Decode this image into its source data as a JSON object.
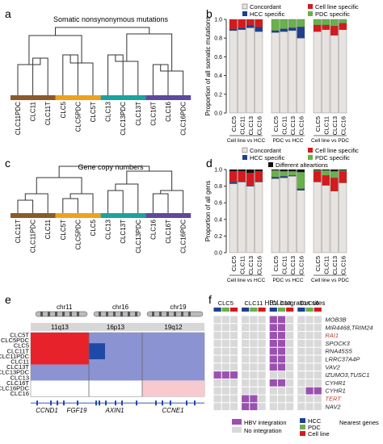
{
  "panels": {
    "a": {
      "letter": "a",
      "title": "Somatic nonsynonymous mutations",
      "leaves": [
        "CLC11PDC",
        "CLC11",
        "CLC11T",
        "CLC5",
        "CLC5PDC",
        "CLC5T",
        "CLC13",
        "CLC13PDC",
        "CLC13T",
        "CLC16T",
        "CLC16",
        "CLC16PDC"
      ]
    },
    "b": {
      "letter": "b",
      "ylabel": "Proportion of all somatic mutations",
      "groups": [
        "Cell line vs HCC",
        "PDC vs HCC",
        "Cell line vs PDC"
      ]
    },
    "c": {
      "letter": "c",
      "title": "Gene copy numbers",
      "leaves": [
        "CLC11T",
        "CLC11PDC",
        "CLC11",
        "CLC5T",
        "CLC5PDC",
        "CLC5",
        "CLC13",
        "CLC13T",
        "CLC13PDC",
        "CLC16",
        "CLC16T",
        "CLC16PDC"
      ]
    },
    "d": {
      "letter": "d",
      "ylabel": "Proportion of all gens",
      "groups": [
        "Cell line vs HCC",
        "PDC vs HCC",
        "Cell line vs PDC"
      ]
    },
    "e": {
      "letter": "e",
      "chromosomes": [
        "chr11",
        "chr16",
        "chr19"
      ],
      "bands": [
        "11q13",
        "16p13",
        "19q12"
      ],
      "rows": [
        "CLC5T",
        "CLC5PDC",
        "CLC5",
        "CLC11T",
        "CLC11PDC",
        "CLC11",
        "CLC13T",
        "CLC13PDC",
        "CLC13",
        "CLC16T",
        "CLC16PDC",
        "CLC16"
      ],
      "genes": [
        "CCND1",
        "FGF19",
        "AXIN1",
        "CCNE1"
      ]
    },
    "f": {
      "letter": "f",
      "title": "HBV integration sites",
      "samples": [
        "CLC5",
        "CLC11",
        "CLC13",
        "CLC16"
      ],
      "genes": [
        "MOB3B",
        "MIR4468,TRIM24",
        "RAI1",
        "SPOCK3",
        "RNA45S5",
        "LRRC37A4P",
        "VAV2",
        "IZUMO3,TUSC1",
        "CYHR1",
        "CYHR1",
        "TERT",
        "NAV2"
      ],
      "gene_colors": [
        "#222",
        "#222",
        "#c0392b",
        "#222",
        "#222",
        "#222",
        "#222",
        "#222",
        "#222",
        "#222",
        "#c0392b",
        "#222"
      ],
      "nearest_label": "Nearest genes"
    }
  },
  "legend_b": {
    "concordant": "Concordant",
    "hcc": "HCC specific",
    "cell": "Cell line specific",
    "pdc": "PDC specific"
  },
  "legend_d": {
    "concordant": "Concordant",
    "hcc": "HCC specific",
    "cell": "Cell line specific",
    "pdc": "PDC specific",
    "diff": "Different alteartions"
  },
  "legend_f": {
    "hbv": "HBV integration",
    "none": "No integration",
    "hcc": "HCC",
    "pdc": "PDC",
    "cell": "Cell line"
  },
  "bar_xlabels": [
    "CLC5",
    "CLC11",
    "CLC13",
    "CLC16"
  ],
  "colors": {
    "brown": "#8b5a2b",
    "orange": "#f0a11b",
    "teal": "#1aa39b",
    "purple": "#5b4a9e",
    "concordant": "#e6e3e0",
    "hcc": "#1f3f8f",
    "cell": "#d7191c",
    "pdc": "#6ab04c",
    "diff": "#111111",
    "hbv": "#9b51b0",
    "noint": "#d9d9d9",
    "amp_red": "#e8222a",
    "amp_blue": "#8b93d2",
    "deep_blue": "#1f49a8",
    "pink": "#f8c9cf"
  },
  "chart_data": [
    {
      "type": "bar",
      "title": "",
      "ylabel": "Proportion of all somatic mutations",
      "ylim": [
        0,
        1.0
      ],
      "groups": [
        "Cell line vs HCC",
        "PDC vs HCC",
        "Cell line vs PDC"
      ],
      "categories": [
        "CLC5",
        "CLC11",
        "CLC13",
        "CLC16"
      ],
      "series": [
        {
          "name": "Concordant",
          "values": [
            [
              0.88,
              0.89,
              0.91,
              0.87
            ],
            [
              0.86,
              0.87,
              0.88,
              0.8
            ],
            [
              0.87,
              0.89,
              0.83,
              0.89
            ]
          ]
        },
        {
          "name": "HCC specific",
          "values": [
            [
              0.02,
              0.02,
              0.03,
              0.05
            ],
            [
              0.02,
              0.03,
              0.03,
              0.12
            ],
            [
              0,
              0,
              0,
              0
            ]
          ]
        },
        {
          "name": "Cell line specific",
          "values": [
            [
              0.1,
              0.09,
              0.06,
              0.08
            ],
            [
              0,
              0,
              0,
              0
            ],
            [
              0.07,
              0.05,
              0.1,
              0.07
            ]
          ]
        },
        {
          "name": "PDC specific",
          "values": [
            [
              0,
              0,
              0,
              0
            ],
            [
              0.12,
              0.1,
              0.09,
              0.08
            ],
            [
              0.06,
              0.06,
              0.07,
              0.04
            ]
          ]
        }
      ]
    },
    {
      "type": "bar",
      "title": "",
      "ylabel": "Proportion of all gens",
      "ylim": [
        0,
        1.0
      ],
      "groups": [
        "Cell line vs HCC",
        "PDC vs HCC",
        "Cell line vs PDC"
      ],
      "categories": [
        "CLC5",
        "CLC11",
        "CLC13",
        "CLC16"
      ],
      "series": [
        {
          "name": "Concordant",
          "values": [
            [
              0.83,
              0.85,
              0.8,
              0.85
            ],
            [
              0.89,
              0.9,
              0.92,
              0.75
            ],
            [
              0.85,
              0.81,
              0.74,
              0.84
            ]
          ]
        },
        {
          "name": "HCC specific",
          "values": [
            [
              0.02,
              0.01,
              0.01,
              0.01
            ],
            [
              0.02,
              0.02,
              0.01,
              0.02
            ],
            [
              0,
              0,
              0,
              0
            ]
          ]
        },
        {
          "name": "Cell line specific",
          "values": [
            [
              0.13,
              0.12,
              0.15,
              0.12
            ],
            [
              0,
              0,
              0,
              0
            ],
            [
              0.13,
              0.12,
              0.16,
              0.14
            ]
          ]
        },
        {
          "name": "PDC specific",
          "values": [
            [
              0,
              0,
              0,
              0
            ],
            [
              0.08,
              0.06,
              0.05,
              0.2
            ],
            [
              0.01,
              0.06,
              0.08,
              0.01
            ]
          ]
        },
        {
          "name": "Different alteartions",
          "values": [
            [
              0.02,
              0.02,
              0.04,
              0.02
            ],
            [
              0.01,
              0.02,
              0.02,
              0.03
            ],
            [
              0.01,
              0.01,
              0.02,
              0.01
            ]
          ]
        }
      ]
    }
  ]
}
